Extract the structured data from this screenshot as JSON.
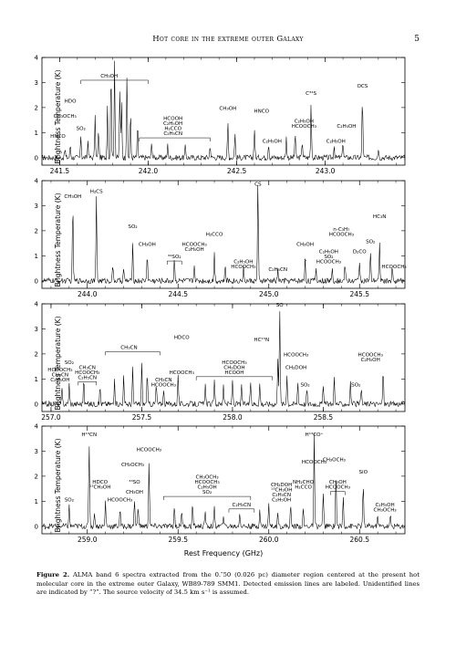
{
  "header": {
    "title": "Hot core in the extreme outer Galaxy",
    "page_number": "5"
  },
  "xlabel": "Rest Frequency (GHz)",
  "caption": {
    "label": "Figure 2.",
    "text": "ALMA band 6 spectra extracted from the 0.″50 (0.026 pc) diameter region centered at the present hot molecular core in the extreme outer Galaxy, WB89-789 SMM1. Detected emission lines are labeled. Unidentified lines are indicated by “?”. The source velocity of 34.5 km s⁻¹ is assumed."
  },
  "chart_data": [
    {
      "type": "line",
      "ylabel": "Brightness Temperature (K)",
      "xlim": [
        241.4,
        243.45
      ],
      "ylim": [
        -0.3,
        4
      ],
      "xticks": [
        "241.5",
        "242.0",
        "242.5",
        "243.0"
      ],
      "xtick_values": [
        241.5,
        242.0,
        242.5,
        243.0
      ],
      "yticks": [
        "0",
        "1",
        "2",
        "3",
        "4"
      ],
      "peaks": [
        {
          "x": 241.53,
          "y": 0.35
        },
        {
          "x": 241.56,
          "y": 0.5
        },
        {
          "x": 241.62,
          "y": 0.9
        },
        {
          "x": 241.66,
          "y": 0.7
        },
        {
          "x": 241.7,
          "y": 1.6
        },
        {
          "x": 241.72,
          "y": 1.1
        },
        {
          "x": 241.77,
          "y": 2.1
        },
        {
          "x": 241.79,
          "y": 3.6
        },
        {
          "x": 241.81,
          "y": 3.9
        },
        {
          "x": 241.84,
          "y": 2.8
        },
        {
          "x": 241.85,
          "y": 2.2
        },
        {
          "x": 241.88,
          "y": 3.3
        },
        {
          "x": 241.9,
          "y": 1.8
        },
        {
          "x": 241.94,
          "y": 1.3
        },
        {
          "x": 242.02,
          "y": 0.6
        },
        {
          "x": 242.11,
          "y": 0.5
        },
        {
          "x": 242.21,
          "y": 0.45
        },
        {
          "x": 242.35,
          "y": 0.5
        },
        {
          "x": 242.45,
          "y": 1.4
        },
        {
          "x": 242.49,
          "y": 1.0
        },
        {
          "x": 242.6,
          "y": 1.2
        },
        {
          "x": 242.68,
          "y": 0.6
        },
        {
          "x": 242.78,
          "y": 0.8
        },
        {
          "x": 242.83,
          "y": 1.0
        },
        {
          "x": 242.87,
          "y": 0.7
        },
        {
          "x": 242.92,
          "y": 2.2
        },
        {
          "x": 243.05,
          "y": 0.5
        },
        {
          "x": 243.1,
          "y": 0.7
        },
        {
          "x": 243.21,
          "y": 2.5
        },
        {
          "x": 243.3,
          "y": 0.4
        }
      ],
      "annotations": [
        {
          "text": "CH₃OH",
          "x": 241.78,
          "y": 3.2,
          "bracket": [
            241.62,
            242.0
          ]
        },
        {
          "text": "HDO",
          "x": 241.56,
          "y": 2.2
        },
        {
          "text": "CH₃OCH₃",
          "x": 241.53,
          "y": 1.6
        },
        {
          "text": "SO₂",
          "x": 241.62,
          "y": 1.1
        },
        {
          "text": "HNCO",
          "x": 241.49,
          "y": 0.8
        },
        {
          "text": "HCOOH",
          "x": 242.14,
          "y": 1.5
        },
        {
          "text": "C₂H₅OH",
          "x": 242.14,
          "y": 1.3
        },
        {
          "text": "H₂CCO",
          "x": 242.14,
          "y": 1.1
        },
        {
          "text": "C₂H₅CN",
          "x": 242.14,
          "y": 0.9,
          "bracket": [
            241.95,
            242.35
          ]
        },
        {
          "text": "CH₃OH",
          "x": 242.45,
          "y": 1.9
        },
        {
          "text": "HNCO",
          "x": 242.64,
          "y": 1.8
        },
        {
          "text": "C₂H₅OH",
          "x": 242.7,
          "y": 0.6
        },
        {
          "text": "C³⁴S",
          "x": 242.92,
          "y": 2.5
        },
        {
          "text": "C₂H₅OH",
          "x": 242.88,
          "y": 1.4
        },
        {
          "text": "HCOOCH₃",
          "x": 242.88,
          "y": 1.2
        },
        {
          "text": "C₂H₅OH",
          "x": 243.06,
          "y": 0.6
        },
        {
          "text": "C₂H₅OH",
          "x": 243.12,
          "y": 1.2
        },
        {
          "text": "OCS",
          "x": 243.21,
          "y": 2.8
        }
      ]
    },
    {
      "type": "line",
      "ylabel": "Brightness Temperature (K)",
      "xlim": [
        243.75,
        245.75
      ],
      "ylim": [
        -0.3,
        4
      ],
      "xticks": [
        "244.0",
        "244.5",
        "245.0",
        "245.5"
      ],
      "xtick_values": [
        244.0,
        244.5,
        245.0,
        245.5
      ],
      "yticks": [
        "0",
        "1",
        "2",
        "3",
        "4"
      ],
      "peaks": [
        {
          "x": 243.92,
          "y": 3.1
        },
        {
          "x": 244.05,
          "y": 3.3
        },
        {
          "x": 244.14,
          "y": 0.6
        },
        {
          "x": 244.2,
          "y": 0.5
        },
        {
          "x": 244.25,
          "y": 1.4
        },
        {
          "x": 244.33,
          "y": 1.1
        },
        {
          "x": 244.48,
          "y": 0.9
        },
        {
          "x": 244.59,
          "y": 0.7
        },
        {
          "x": 244.7,
          "y": 1.1
        },
        {
          "x": 244.76,
          "y": 0.6
        },
        {
          "x": 244.86,
          "y": 0.5
        },
        {
          "x": 244.94,
          "y": 3.9
        },
        {
          "x": 245.05,
          "y": 0.4
        },
        {
          "x": 245.2,
          "y": 0.9
        },
        {
          "x": 245.26,
          "y": 0.5
        },
        {
          "x": 245.35,
          "y": 0.6
        },
        {
          "x": 245.42,
          "y": 0.7
        },
        {
          "x": 245.5,
          "y": 0.8
        },
        {
          "x": 245.56,
          "y": 1.1
        },
        {
          "x": 245.61,
          "y": 1.5
        },
        {
          "x": 245.68,
          "y": 0.5
        }
      ],
      "annotations": [
        {
          "text": "CH₃OH",
          "x": 243.92,
          "y": 3.3
        },
        {
          "text": "H₂CS",
          "x": 244.05,
          "y": 3.5
        },
        {
          "text": "SO₂",
          "x": 244.25,
          "y": 2.1
        },
        {
          "text": "CH₃OH",
          "x": 244.33,
          "y": 1.4
        },
        {
          "text": "³⁴SO₂",
          "x": 244.48,
          "y": 0.9,
          "bracket": [
            244.44,
            244.52
          ]
        },
        {
          "text": "HCOOCH₃",
          "x": 244.59,
          "y": 1.4
        },
        {
          "text": "C₂H₅OH",
          "x": 244.59,
          "y": 1.2
        },
        {
          "text": "H₂CCO",
          "x": 244.7,
          "y": 1.8
        },
        {
          "text": "C₂H₅OH",
          "x": 244.86,
          "y": 0.7
        },
        {
          "text": "HCOOCH₃",
          "x": 244.86,
          "y": 0.5
        },
        {
          "text": "CS",
          "x": 244.94,
          "y": 3.8
        },
        {
          "text": "C₂H₅CN",
          "x": 245.05,
          "y": 0.4
        },
        {
          "text": "?",
          "x": 245.2,
          "y": 0.7
        },
        {
          "text": "CH₃OH",
          "x": 245.2,
          "y": 1.4
        },
        {
          "text": "n-C₃H₇",
          "x": 245.4,
          "y": 2.0
        },
        {
          "text": "HCOOCH₃",
          "x": 245.4,
          "y": 1.8
        },
        {
          "text": "C₂H₅OH",
          "x": 245.33,
          "y": 1.1
        },
        {
          "text": "SO₂",
          "x": 245.33,
          "y": 0.9
        },
        {
          "text": "HCOOCH₃",
          "x": 245.33,
          "y": 0.7
        },
        {
          "text": "D₂CO",
          "x": 245.5,
          "y": 1.1
        },
        {
          "text": "SO₂",
          "x": 245.56,
          "y": 1.5
        },
        {
          "text": "HC₃N",
          "x": 245.61,
          "y": 2.5
        },
        {
          "text": "HCOOCH₃",
          "x": 245.69,
          "y": 0.5
        }
      ]
    },
    {
      "type": "line",
      "ylabel": "Brightness Temperature (K)",
      "xlim": [
        256.95,
        258.95
      ],
      "ylim": [
        -0.3,
        4
      ],
      "xticks": [
        "257.0",
        "257.5",
        "258.0",
        "258.5"
      ],
      "xtick_values": [
        257.0,
        257.5,
        258.0,
        258.5
      ],
      "yticks": [
        "0",
        "1",
        "2",
        "3",
        "4"
      ],
      "peaks": [
        {
          "x": 257.06,
          "y": 0.6
        },
        {
          "x": 257.1,
          "y": 0.8
        },
        {
          "x": 257.18,
          "y": 1.0
        },
        {
          "x": 257.27,
          "y": 0.7
        },
        {
          "x": 257.35,
          "y": 0.9
        },
        {
          "x": 257.4,
          "y": 1.1
        },
        {
          "x": 257.45,
          "y": 1.4
        },
        {
          "x": 257.5,
          "y": 1.6
        },
        {
          "x": 257.53,
          "y": 1.2
        },
        {
          "x": 257.58,
          "y": 0.8
        },
        {
          "x": 257.62,
          "y": 0.6
        },
        {
          "x": 257.7,
          "y": 1.2
        },
        {
          "x": 257.85,
          "y": 0.7
        },
        {
          "x": 257.9,
          "y": 0.9
        },
        {
          "x": 257.95,
          "y": 0.8
        },
        {
          "x": 258.0,
          "y": 1.0
        },
        {
          "x": 258.05,
          "y": 0.7
        },
        {
          "x": 258.1,
          "y": 0.9
        },
        {
          "x": 258.15,
          "y": 0.8
        },
        {
          "x": 258.25,
          "y": 1.9
        },
        {
          "x": 258.26,
          "y": 3.9
        },
        {
          "x": 258.3,
          "y": 1.2
        },
        {
          "x": 258.36,
          "y": 0.9
        },
        {
          "x": 258.41,
          "y": 0.6
        },
        {
          "x": 258.5,
          "y": 0.8
        },
        {
          "x": 258.56,
          "y": 1.1
        },
        {
          "x": 258.65,
          "y": 0.9
        },
        {
          "x": 258.71,
          "y": 0.6
        },
        {
          "x": 258.83,
          "y": 1.4
        }
      ],
      "annotations": [
        {
          "text": "SO₂",
          "x": 257.1,
          "y": 1.6
        },
        {
          "text": "HCOOCH₃",
          "x": 257.05,
          "y": 1.3
        },
        {
          "text": "CH₃CN",
          "x": 257.05,
          "y": 1.1
        },
        {
          "text": "C₂H₅OH",
          "x": 257.05,
          "y": 0.9
        },
        {
          "text": "CH₃CN",
          "x": 257.2,
          "y": 1.4
        },
        {
          "text": "HCOOCH₃",
          "x": 257.2,
          "y": 1.2
        },
        {
          "text": "C₂H₅CN",
          "x": 257.2,
          "y": 1.0,
          "bracket": [
            257.15,
            257.25
          ]
        },
        {
          "text": "CH₃CN",
          "x": 257.43,
          "y": 2.2,
          "bracket": [
            257.3,
            257.6
          ]
        },
        {
          "text": "CH₃CN",
          "x": 257.62,
          "y": 0.9
        },
        {
          "text": "HCOOCH₃",
          "x": 257.62,
          "y": 0.7
        },
        {
          "text": "HDCO",
          "x": 257.72,
          "y": 2.6
        },
        {
          "text": "HCOOCH₃",
          "x": 257.72,
          "y": 1.2
        },
        {
          "text": "HCOOCH₃",
          "x": 258.01,
          "y": 1.6
        },
        {
          "text": "CH₂DOH",
          "x": 258.01,
          "y": 1.4
        },
        {
          "text": "HCOOH",
          "x": 258.01,
          "y": 1.2,
          "bracket": [
            257.8,
            258.22
          ]
        },
        {
          "text": "HC¹⁵N",
          "x": 258.16,
          "y": 2.5
        },
        {
          "text": "SO",
          "x": 258.26,
          "y": 3.9
        },
        {
          "text": "HCOOCH₃",
          "x": 258.35,
          "y": 1.9
        },
        {
          "text": "CH₂DOH",
          "x": 258.35,
          "y": 1.4
        },
        {
          "text": "SO₂",
          "x": 258.4,
          "y": 0.7
        },
        {
          "text": "HCOOCH₃",
          "x": 258.76,
          "y": 1.9
        },
        {
          "text": "C₂H₅OH",
          "x": 258.76,
          "y": 1.7
        },
        {
          "text": "SO₂",
          "x": 258.68,
          "y": 0.7
        }
      ]
    },
    {
      "type": "line",
      "ylabel": "Brightness Temperature (K)",
      "xlim": [
        258.75,
        260.75
      ],
      "ylim": [
        -0.3,
        4
      ],
      "xticks": [
        "259.0",
        "259.5",
        "260.0",
        "260.5"
      ],
      "xtick_values": [
        259.0,
        259.5,
        260.0,
        260.5
      ],
      "yticks": [
        "0",
        "1",
        "2",
        "3",
        "4"
      ],
      "peaks": [
        {
          "x": 258.9,
          "y": 0.8
        },
        {
          "x": 259.01,
          "y": 3.4
        },
        {
          "x": 259.04,
          "y": 0.6
        },
        {
          "x": 259.1,
          "y": 1.0
        },
        {
          "x": 259.18,
          "y": 0.7
        },
        {
          "x": 259.26,
          "y": 1.1
        },
        {
          "x": 259.28,
          "y": 0.9
        },
        {
          "x": 259.34,
          "y": 2.6
        },
        {
          "x": 259.48,
          "y": 0.8
        },
        {
          "x": 259.52,
          "y": 0.7
        },
        {
          "x": 259.58,
          "y": 0.9
        },
        {
          "x": 259.65,
          "y": 0.6
        },
        {
          "x": 259.7,
          "y": 0.7
        },
        {
          "x": 259.75,
          "y": 0.5
        },
        {
          "x": 259.84,
          "y": 0.6
        },
        {
          "x": 259.95,
          "y": 0.7
        },
        {
          "x": 260.0,
          "y": 0.9
        },
        {
          "x": 260.05,
          "y": 0.6
        },
        {
          "x": 260.12,
          "y": 0.8
        },
        {
          "x": 260.19,
          "y": 0.7
        },
        {
          "x": 260.25,
          "y": 3.6
        },
        {
          "x": 260.3,
          "y": 1.4
        },
        {
          "x": 260.37,
          "y": 2.1
        },
        {
          "x": 260.41,
          "y": 1.2
        },
        {
          "x": 260.52,
          "y": 1.7
        },
        {
          "x": 260.6,
          "y": 0.5
        },
        {
          "x": 260.67,
          "y": 0.4
        }
      ],
      "annotations": [
        {
          "text": "SO₂",
          "x": 258.9,
          "y": 1.0
        },
        {
          "text": "H¹³CN",
          "x": 259.01,
          "y": 3.6
        },
        {
          "text": "HDCO",
          "x": 259.07,
          "y": 1.7
        },
        {
          "text": "¹³CH₃OH",
          "x": 259.07,
          "y": 1.5
        },
        {
          "text": "HCOOCH₃",
          "x": 259.18,
          "y": 1.0
        },
        {
          "text": "CH₃OCH₃",
          "x": 259.25,
          "y": 2.4
        },
        {
          "text": "³³SO",
          "x": 259.26,
          "y": 1.7
        },
        {
          "text": "CH₃OH",
          "x": 259.26,
          "y": 1.3
        },
        {
          "text": "HCOOCH₃",
          "x": 259.34,
          "y": 3.0
        },
        {
          "text": "CH₃OCH₃",
          "x": 259.66,
          "y": 1.9
        },
        {
          "text": "HCOOCH₃",
          "x": 259.66,
          "y": 1.7
        },
        {
          "text": "C₂H₅OH",
          "x": 259.66,
          "y": 1.5
        },
        {
          "text": "SO₂",
          "x": 259.66,
          "y": 1.3,
          "bracket": [
            259.42,
            259.9
          ]
        },
        {
          "text": "C₂H₅CN",
          "x": 259.85,
          "y": 0.8,
          "bracket": [
            259.78,
            259.92
          ]
        },
        {
          "text": "CH₂DOH",
          "x": 260.07,
          "y": 1.6
        },
        {
          "text": "¹³CH₃OH",
          "x": 260.07,
          "y": 1.4
        },
        {
          "text": "C₂H₅CN",
          "x": 260.07,
          "y": 1.2
        },
        {
          "text": "C₂H₅OH",
          "x": 260.07,
          "y": 1.0
        },
        {
          "text": "NH₂CHO",
          "x": 260.19,
          "y": 1.7
        },
        {
          "text": "H₂CCO",
          "x": 260.19,
          "y": 1.5
        },
        {
          "text": "H¹³CO⁺",
          "x": 260.25,
          "y": 3.6
        },
        {
          "text": "HCOOCH₃",
          "x": 260.25,
          "y": 2.5
        },
        {
          "text": "CH₃OCH₃",
          "x": 260.36,
          "y": 2.6
        },
        {
          "text": "CH₃OH",
          "x": 260.38,
          "y": 1.7
        },
        {
          "text": "HCOOCH₃",
          "x": 260.38,
          "y": 1.5,
          "bracket": [
            260.34,
            260.42
          ]
        },
        {
          "text": "SiO",
          "x": 260.52,
          "y": 2.1
        },
        {
          "text": "C₂H₅OH",
          "x": 260.64,
          "y": 0.8
        },
        {
          "text": "CH₃OCH₃",
          "x": 260.64,
          "y": 0.6
        }
      ]
    }
  ]
}
